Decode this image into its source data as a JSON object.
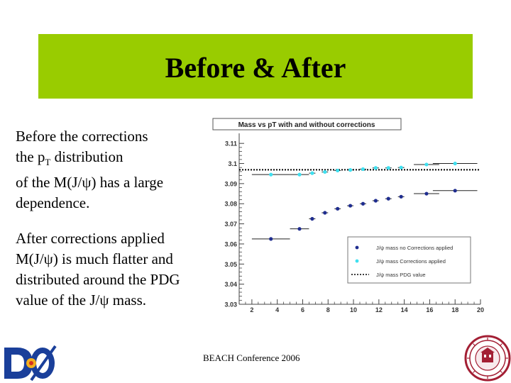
{
  "colors": {
    "title_bg": "#99cc00",
    "series_before": "#1f2d8f",
    "series_after": "#3fe0f0",
    "pdg_line": "#000000"
  },
  "slide": {
    "title": "Before & After",
    "footer": "BEACH Conference 2006"
  },
  "para1": {
    "line1": "Before the corrections",
    "line2_a": "the p",
    "line2_sub": "T",
    "line2_b": " distribution",
    "line3": "of the M(J/ψ) has a large",
    "line4": "dependence."
  },
  "para2": {
    "line1": "After corrections applied",
    "line2": "M(J/ψ) is much flatter and",
    "line3": "distributed around the PDG",
    "line4": "value of the J/ψ mass."
  },
  "logos": {
    "d0_icon": "d0-logo-icon",
    "seal_icon": "university-seal-icon"
  },
  "chart_data": {
    "type": "scatter",
    "title": "Mass vs pT with and without corrections",
    "xlim": [
      1,
      20
    ],
    "ylim": [
      3.03,
      3.115
    ],
    "xticks": [
      2,
      4,
      6,
      8,
      10,
      12,
      14,
      16,
      18,
      20
    ],
    "yticks": [
      3.03,
      3.04,
      3.05,
      3.06,
      3.07,
      3.08,
      3.09,
      3.1,
      3.11
    ],
    "ytick_labels": [
      "3.03",
      "3.04",
      "3.05",
      "3.06",
      "3.07",
      "3.08",
      "3.09",
      "3.1",
      "3.11"
    ],
    "pdg_value": 3.0969,
    "series": [
      {
        "name": "J/ψ mass no Corrections applied",
        "key": "before",
        "x": [
          3.5,
          5.75,
          6.75,
          7.75,
          8.75,
          9.75,
          10.75,
          11.75,
          12.75,
          13.75,
          15.75,
          18
        ],
        "xerr": [
          1.5,
          0.75,
          0.25,
          0.25,
          0.25,
          0.25,
          0.25,
          0.25,
          0.25,
          0.25,
          1,
          1.75
        ],
        "y": [
          3.0625,
          3.0675,
          3.0725,
          3.0755,
          3.0775,
          3.079,
          3.08,
          3.0815,
          3.0825,
          3.0835,
          3.085,
          3.0865
        ]
      },
      {
        "name": "J/ψ mass Corrections applied",
        "key": "after",
        "x": [
          3.5,
          5.75,
          6.75,
          7.75,
          8.75,
          9.75,
          10.75,
          11.75,
          12.75,
          13.75,
          15.75,
          18
        ],
        "xerr": [
          1.5,
          0.75,
          0.25,
          0.25,
          0.25,
          0.25,
          0.25,
          0.25,
          0.25,
          0.25,
          1,
          1.75
        ],
        "y": [
          3.0945,
          3.0945,
          3.0952,
          3.0958,
          3.0965,
          3.0968,
          3.0972,
          3.0978,
          3.0978,
          3.098,
          3.0995,
          3.1
        ]
      }
    ],
    "legend": {
      "position": "bottom-right",
      "entries": [
        "J/ψ mass no Corrections applied",
        "J/ψ mass Corrections applied",
        "J/ψ mass PDG value"
      ]
    }
  }
}
